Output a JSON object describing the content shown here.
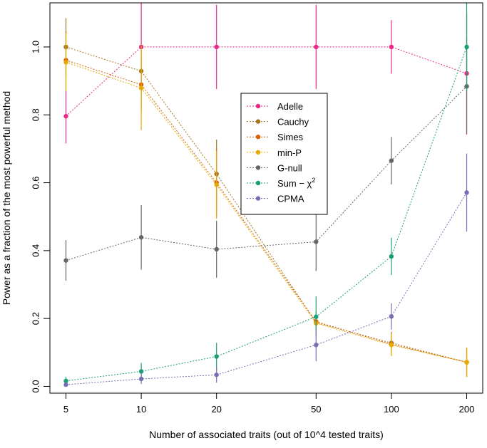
{
  "chart_data": {
    "type": "line",
    "title": "",
    "xlabel": "Number of associated traits (out of 10^4 tested traits)",
    "ylabel": "Power as a fraction of the most powerful method",
    "x_scale": "log",
    "x": [
      5,
      10,
      20,
      50,
      100,
      200
    ],
    "x_tick_labels": [
      "5",
      "10",
      "20",
      "50",
      "100",
      "200"
    ],
    "ylim": [
      -0.02,
      1.13
    ],
    "y_ticks": [
      0.0,
      0.2,
      0.4,
      0.6,
      0.8,
      1.0
    ],
    "y_tick_labels": [
      "0.0",
      "0.2",
      "0.4",
      "0.6",
      "0.8",
      "1.0"
    ],
    "legend_position": "center",
    "series": [
      {
        "name": "Adelle",
        "label": "Adelle",
        "color": "#E7298A",
        "values": [
          0.796,
          1.0,
          1.0,
          1.0,
          1.0,
          0.922
        ],
        "lower": [
          0.716,
          0.87,
          0.876,
          0.876,
          0.921,
          0.742
        ],
        "upper": [
          0.876,
          1.13,
          1.124,
          1.124,
          1.079,
          1.102
        ]
      },
      {
        "name": "Cauchy",
        "label": "Cauchy",
        "color": "#A6761D",
        "values": [
          1.0,
          0.929,
          0.626,
          0.188,
          0.128,
          0.071
        ],
        "lower": [
          0.915,
          0.85,
          0.525,
          0.16,
          0.095,
          0.028
        ],
        "upper": [
          1.085,
          1.008,
          0.727,
          0.216,
          0.161,
          0.114
        ]
      },
      {
        "name": "Simes",
        "label": "Simes",
        "color": "#D95F02",
        "values": [
          0.961,
          0.889,
          0.6,
          0.191,
          0.124,
          0.071
        ],
        "lower": [
          0.876,
          0.81,
          0.5,
          0.163,
          0.091,
          0.028
        ],
        "upper": [
          1.046,
          0.968,
          0.7,
          0.219,
          0.157,
          0.114
        ]
      },
      {
        "name": "min-P",
        "label": "min-P",
        "color": "#E6AB02",
        "values": [
          0.955,
          0.879,
          0.594,
          0.186,
          0.122,
          0.071
        ],
        "lower": [
          0.87,
          0.755,
          0.494,
          0.158,
          0.089,
          0.028
        ],
        "upper": [
          1.04,
          1.003,
          0.694,
          0.214,
          0.155,
          0.114
        ]
      },
      {
        "name": "G-null",
        "label": "G-null",
        "color": "#666666",
        "values": [
          0.371,
          0.439,
          0.404,
          0.426,
          0.665,
          0.884
        ],
        "lower": [
          0.311,
          0.344,
          0.32,
          0.34,
          0.595,
          0.744
        ],
        "upper": [
          0.431,
          0.534,
          0.488,
          0.512,
          0.735,
          1.024
        ]
      },
      {
        "name": "Sum-chi2",
        "label": "Sum − χ",
        "label_superscript": "2",
        "color": "#1B9E77",
        "values": [
          0.016,
          0.044,
          0.088,
          0.205,
          0.383,
          1.0
        ],
        "lower": [
          0.004,
          0.019,
          0.048,
          0.145,
          0.328,
          0.87
        ],
        "upper": [
          0.028,
          0.069,
          0.128,
          0.265,
          0.438,
          1.13
        ]
      },
      {
        "name": "CPMA",
        "label": "CPMA",
        "color": "#7570B3",
        "values": [
          0.005,
          0.022,
          0.034,
          0.122,
          0.206,
          0.571
        ],
        "lower": [
          0.0,
          0.007,
          0.011,
          0.074,
          0.167,
          0.456
        ],
        "upper": [
          0.01,
          0.037,
          0.057,
          0.17,
          0.245,
          0.686
        ]
      }
    ]
  }
}
